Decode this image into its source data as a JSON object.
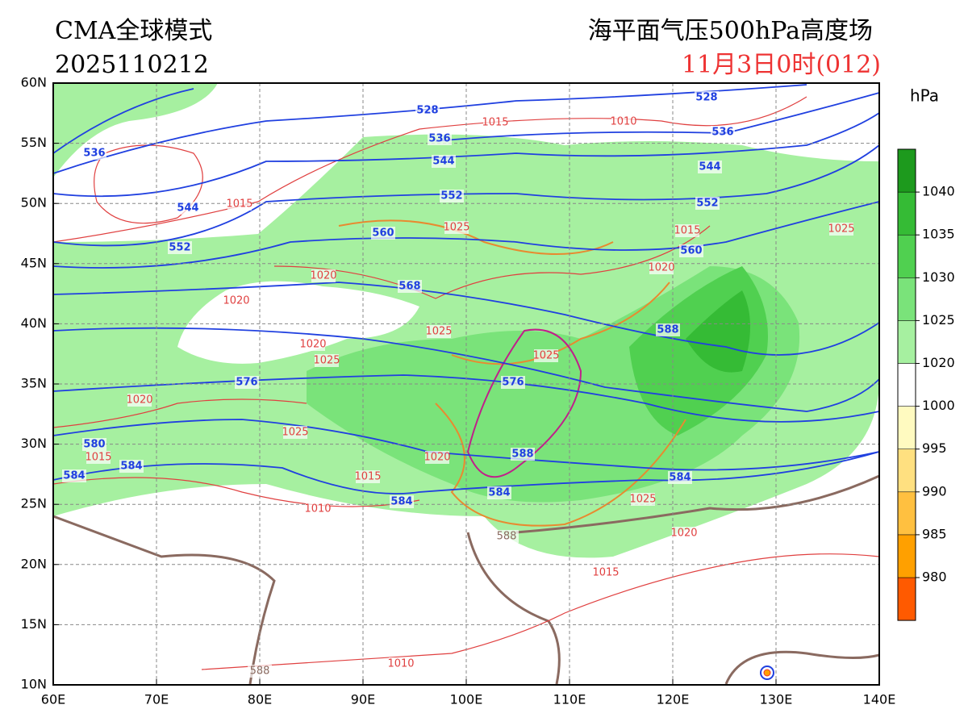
{
  "header": {
    "model": "CMA全球模式",
    "init": "2025110212",
    "product": "海平面气压500hPa高度场",
    "valid": "11月3日0时(012)"
  },
  "map": {
    "xlim": [
      60,
      140
    ],
    "ylim": [
      10,
      60
    ],
    "xticks": [
      {
        "value": 60,
        "label": "60E"
      },
      {
        "value": 70,
        "label": "70E"
      },
      {
        "value": 80,
        "label": "80E"
      },
      {
        "value": 90,
        "label": "90E"
      },
      {
        "value": 100,
        "label": "100E"
      },
      {
        "value": 110,
        "label": "110E"
      },
      {
        "value": 120,
        "label": "120E"
      },
      {
        "value": 130,
        "label": "130E"
      },
      {
        "value": 140,
        "label": "140E"
      }
    ],
    "yticks": [
      {
        "value": 10,
        "label": "10N"
      },
      {
        "value": 15,
        "label": "15N"
      },
      {
        "value": 20,
        "label": "20N"
      },
      {
        "value": 25,
        "label": "25N"
      },
      {
        "value": 30,
        "label": "30N"
      },
      {
        "value": 35,
        "label": "35N"
      },
      {
        "value": 40,
        "label": "40N"
      },
      {
        "value": 45,
        "label": "45N"
      },
      {
        "value": 50,
        "label": "50N"
      },
      {
        "value": 55,
        "label": "55N"
      },
      {
        "value": 60,
        "label": "60N"
      }
    ],
    "grid": true,
    "height_contour_labels": [
      528,
      528,
      536,
      536,
      536,
      544,
      544,
      544,
      552,
      552,
      552,
      560,
      560,
      568,
      576,
      576,
      580,
      584,
      584,
      584,
      584,
      584,
      588,
      588
    ],
    "ridge_labels": [
      588,
      588
    ],
    "pressure_contour_labels": [
      1015,
      1015,
      1010,
      1010,
      1010,
      1020,
      1020,
      1020,
      1020,
      1020,
      1020,
      1020,
      1025,
      1025,
      1025,
      1025,
      1025,
      1025,
      1025,
      1015,
      1015,
      1015,
      1015
    ]
  },
  "colorbar": {
    "unit": "hPa",
    "ticks": [
      980,
      985,
      990,
      995,
      1000,
      1020,
      1025,
      1030,
      1035,
      1040
    ],
    "colors": [
      "#ff5a00",
      "#ffa000",
      "#ffc040",
      "#ffe080",
      "#fffac0",
      "#ffffff",
      "#a6f0a0",
      "#7ae37a",
      "#50d050",
      "#35bb35",
      "#1d9a1d"
    ]
  }
}
